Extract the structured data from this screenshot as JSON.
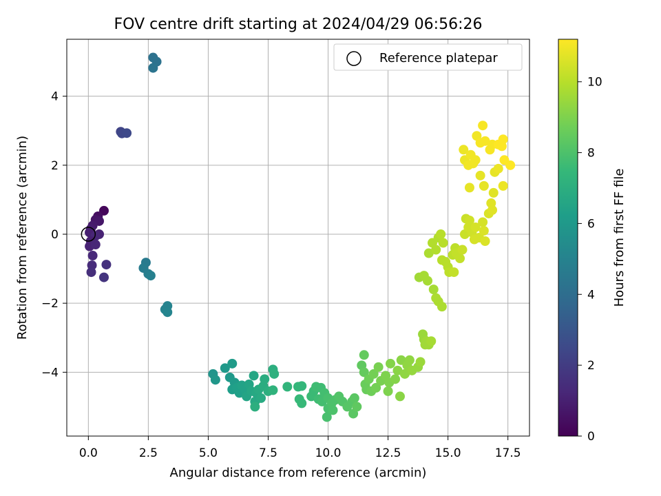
{
  "chart_data": {
    "type": "scatter",
    "title": "FOV centre drift starting at 2024/04/29 06:56:26",
    "xlabel": "Angular distance from reference (arcmin)",
    "ylabel": "Rotation from reference (arcmin)",
    "xlim": [
      -0.9,
      18.4
    ],
    "ylim": [
      -5.85,
      5.65
    ],
    "xticks": [
      0.0,
      2.5,
      5.0,
      7.5,
      10.0,
      12.5,
      15.0,
      17.5
    ],
    "xtick_labels": [
      "0.0",
      "2.5",
      "5.0",
      "7.5",
      "10.0",
      "12.5",
      "15.0",
      "17.5"
    ],
    "yticks": [
      -4,
      -2,
      0,
      2,
      4
    ],
    "ytick_labels": [
      "−4",
      "−2",
      "0",
      "2",
      "4"
    ],
    "grid": true,
    "legend": {
      "position": "top-right",
      "entries": [
        "Reference platepar"
      ]
    },
    "reference_point": {
      "x": 0,
      "y": 0
    },
    "colorbar": {
      "label": "Hours from first FF file",
      "range": [
        0,
        11.2
      ],
      "ticks": [
        0,
        2,
        4,
        6,
        8,
        10
      ],
      "tick_labels": [
        "0",
        "2",
        "4",
        "6",
        "8",
        "10"
      ],
      "colormap": "viridis"
    },
    "points": [
      [
        0.65,
        0.68,
        0.2
      ],
      [
        0.4,
        0.52,
        0.4
      ],
      [
        0.3,
        0.42,
        0.6
      ],
      [
        0.45,
        0.38,
        0.7
      ],
      [
        0.18,
        0.25,
        0.8
      ],
      [
        0.1,
        0.15,
        0.9
      ],
      [
        0.05,
        0.05,
        1.0
      ],
      [
        0.45,
        0.0,
        1.1
      ],
      [
        0.3,
        -0.05,
        1.2
      ],
      [
        0.1,
        -0.2,
        1.0
      ],
      [
        0.05,
        -0.35,
        1.1
      ],
      [
        0.3,
        -0.3,
        1.2
      ],
      [
        0.18,
        -0.62,
        1.3
      ],
      [
        0.15,
        -0.9,
        1.4
      ],
      [
        0.12,
        -1.1,
        1.5
      ],
      [
        0.75,
        -0.88,
        1.6
      ],
      [
        0.65,
        -1.25,
        1.7
      ],
      [
        1.35,
        2.97,
        2.3
      ],
      [
        1.4,
        2.92,
        2.4
      ],
      [
        1.6,
        2.93,
        2.5
      ],
      [
        2.7,
        5.12,
        4.2
      ],
      [
        2.85,
        5.0,
        4.2
      ],
      [
        2.7,
        4.82,
        4.3
      ],
      [
        2.4,
        -0.82,
        4.6
      ],
      [
        2.3,
        -0.98,
        4.7
      ],
      [
        2.5,
        -1.15,
        4.8
      ],
      [
        2.6,
        -1.2,
        4.9
      ],
      [
        3.3,
        -2.08,
        5.0
      ],
      [
        3.2,
        -2.18,
        5.0
      ],
      [
        3.3,
        -2.26,
        5.1
      ],
      [
        5.2,
        -4.05,
        5.8
      ],
      [
        5.3,
        -4.22,
        5.9
      ],
      [
        5.7,
        -3.88,
        6.0
      ],
      [
        5.9,
        -4.15,
        6.0
      ],
      [
        6.0,
        -3.75,
        6.1
      ],
      [
        6.1,
        -4.3,
        6.1
      ],
      [
        6.0,
        -4.5,
        6.2
      ],
      [
        6.2,
        -4.45,
        6.3
      ],
      [
        6.3,
        -4.6,
        6.3
      ],
      [
        6.4,
        -4.38,
        6.4
      ],
      [
        6.55,
        -4.52,
        6.4
      ],
      [
        6.6,
        -4.7,
        6.5
      ],
      [
        6.7,
        -4.35,
        6.5
      ],
      [
        6.8,
        -4.55,
        6.6
      ],
      [
        6.9,
        -4.1,
        6.6
      ],
      [
        6.95,
        -4.85,
        6.7
      ],
      [
        7.0,
        -4.6,
        6.7
      ],
      [
        7.1,
        -4.5,
        6.8
      ],
      [
        7.2,
        -4.75,
        6.8
      ],
      [
        7.3,
        -4.4,
        6.9
      ],
      [
        7.35,
        -4.2,
        6.9
      ],
      [
        7.5,
        -4.55,
        7.0
      ],
      [
        6.95,
        -5.0,
        7.0
      ],
      [
        7.7,
        -3.92,
        7.0
      ],
      [
        7.75,
        -4.05,
        7.1
      ],
      [
        7.7,
        -4.52,
        7.2
      ],
      [
        8.3,
        -4.42,
        7.3
      ],
      [
        8.75,
        -4.42,
        7.4
      ],
      [
        8.9,
        -4.4,
        7.4
      ],
      [
        8.8,
        -4.78,
        7.5
      ],
      [
        8.9,
        -4.9,
        7.5
      ],
      [
        9.3,
        -4.7,
        7.6
      ],
      [
        9.4,
        -4.55,
        7.6
      ],
      [
        9.5,
        -4.42,
        7.7
      ],
      [
        9.6,
        -4.78,
        7.7
      ],
      [
        9.7,
        -4.45,
        7.7
      ],
      [
        9.75,
        -4.85,
        7.8
      ],
      [
        9.85,
        -4.6,
        7.8
      ],
      [
        10.0,
        -4.75,
        7.9
      ],
      [
        9.95,
        -5.3,
        7.9
      ],
      [
        10.0,
        -5.05,
        7.9
      ],
      [
        10.15,
        -4.9,
        8.0
      ],
      [
        10.2,
        -5.1,
        8.0
      ],
      [
        10.3,
        -4.8,
        8.0
      ],
      [
        10.45,
        -4.7,
        8.1
      ],
      [
        10.6,
        -4.85,
        8.1
      ],
      [
        10.8,
        -5.0,
        8.2
      ],
      [
        11.0,
        -4.85,
        8.2
      ],
      [
        11.05,
        -5.2,
        8.3
      ],
      [
        11.1,
        -4.75,
        8.3
      ],
      [
        11.2,
        -5.0,
        8.4
      ],
      [
        11.4,
        -3.8,
        8.4
      ],
      [
        11.5,
        -3.5,
        8.5
      ],
      [
        11.5,
        -4.0,
        8.5
      ],
      [
        11.55,
        -4.35,
        8.6
      ],
      [
        11.6,
        -4.5,
        8.6
      ],
      [
        11.7,
        -4.2,
        8.7
      ],
      [
        11.8,
        -4.55,
        8.7
      ],
      [
        11.9,
        -4.05,
        8.8
      ],
      [
        12.0,
        -4.45,
        8.8
      ],
      [
        12.1,
        -3.85,
        8.9
      ],
      [
        12.2,
        -4.25,
        8.9
      ],
      [
        12.4,
        -4.1,
        9.0
      ],
      [
        12.5,
        -4.55,
        9.0
      ],
      [
        12.55,
        -4.3,
        9.0
      ],
      [
        12.6,
        -3.75,
        9.1
      ],
      [
        12.8,
        -4.2,
        9.1
      ],
      [
        12.9,
        -3.95,
        9.2
      ],
      [
        13.0,
        -4.7,
        9.2
      ],
      [
        13.05,
        -3.65,
        9.2
      ],
      [
        13.2,
        -4.05,
        9.3
      ],
      [
        13.3,
        -3.8,
        9.3
      ],
      [
        13.4,
        -3.65,
        9.3
      ],
      [
        13.5,
        -3.95,
        9.4
      ],
      [
        13.75,
        -3.85,
        9.4
      ],
      [
        13.85,
        -3.7,
        9.5
      ],
      [
        13.95,
        -2.9,
        9.5
      ],
      [
        14.0,
        -3.05,
        9.5
      ],
      [
        14.05,
        -3.2,
        9.6
      ],
      [
        14.1,
        -3.1,
        9.6
      ],
      [
        14.2,
        -3.2,
        9.6
      ],
      [
        14.3,
        -3.1,
        9.7
      ],
      [
        13.8,
        -1.25,
        9.6
      ],
      [
        14.0,
        -1.2,
        9.7
      ],
      [
        14.15,
        -1.35,
        9.7
      ],
      [
        14.4,
        -1.6,
        9.7
      ],
      [
        14.5,
        -1.85,
        9.8
      ],
      [
        14.6,
        -1.95,
        9.8
      ],
      [
        14.75,
        -2.1,
        9.8
      ],
      [
        14.2,
        -0.55,
        9.8
      ],
      [
        14.35,
        -0.25,
        9.9
      ],
      [
        14.5,
        -0.45,
        9.9
      ],
      [
        14.6,
        -0.1,
        9.9
      ],
      [
        14.7,
        0.0,
        10.0
      ],
      [
        14.8,
        -0.25,
        10.0
      ],
      [
        14.75,
        -0.75,
        10.0
      ],
      [
        14.9,
        -0.8,
        10.0
      ],
      [
        15.0,
        -0.95,
        10.0
      ],
      [
        15.05,
        -1.1,
        10.1
      ],
      [
        15.2,
        -0.6,
        10.1
      ],
      [
        15.3,
        -0.4,
        10.1
      ],
      [
        15.35,
        -0.55,
        10.2
      ],
      [
        15.25,
        -1.1,
        10.2
      ],
      [
        15.5,
        -0.7,
        10.2
      ],
      [
        15.6,
        -0.45,
        10.3
      ],
      [
        15.7,
        0.0,
        10.3
      ],
      [
        15.75,
        0.45,
        10.3
      ],
      [
        15.85,
        0.2,
        10.4
      ],
      [
        15.9,
        0.4,
        10.4
      ],
      [
        16.0,
        0.05,
        10.4
      ],
      [
        16.1,
        -0.15,
        10.5
      ],
      [
        16.15,
        0.2,
        10.5
      ],
      [
        16.3,
        -0.1,
        10.5
      ],
      [
        16.45,
        0.35,
        10.5
      ],
      [
        16.5,
        0.1,
        10.6
      ],
      [
        16.55,
        -0.2,
        10.6
      ],
      [
        16.7,
        0.6,
        10.6
      ],
      [
        16.8,
        0.9,
        10.7
      ],
      [
        16.85,
        0.7,
        10.7
      ],
      [
        16.9,
        1.2,
        10.7
      ],
      [
        16.5,
        1.4,
        10.8
      ],
      [
        15.9,
        1.35,
        10.8
      ],
      [
        16.35,
        1.7,
        10.8
      ],
      [
        16.95,
        1.8,
        10.8
      ],
      [
        17.1,
        1.9,
        10.9
      ],
      [
        17.3,
        1.4,
        10.9
      ],
      [
        15.65,
        2.45,
        10.9
      ],
      [
        15.7,
        2.15,
        10.9
      ],
      [
        15.85,
        2.0,
        11.0
      ],
      [
        15.95,
        2.3,
        11.0
      ],
      [
        16.05,
        2.05,
        11.0
      ],
      [
        16.15,
        2.15,
        11.0
      ],
      [
        16.2,
        2.85,
        11.0
      ],
      [
        16.35,
        2.65,
        11.1
      ],
      [
        16.45,
        3.15,
        11.1
      ],
      [
        16.55,
        2.7,
        11.1
      ],
      [
        16.75,
        2.45,
        11.1
      ],
      [
        16.85,
        2.6,
        11.1
      ],
      [
        17.1,
        2.6,
        11.2
      ],
      [
        17.25,
        2.55,
        11.2
      ],
      [
        17.3,
        2.75,
        11.2
      ],
      [
        17.35,
        2.15,
        11.2
      ],
      [
        17.6,
        2.0,
        11.2
      ]
    ]
  }
}
